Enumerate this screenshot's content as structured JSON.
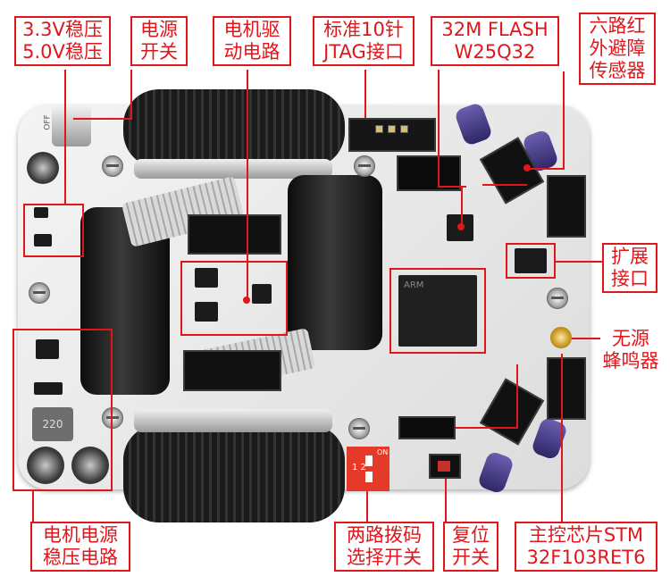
{
  "labels": {
    "regulator_3v3_5v": [
      "3.3V稳压",
      "5.0V稳压"
    ],
    "power_switch": [
      "电源",
      "开关"
    ],
    "motor_driver": [
      "电机驱",
      "动电路"
    ],
    "jtag": [
      "标准10针",
      "JTAG接口"
    ],
    "flash": [
      "32M FLASH",
      "W25Q32"
    ],
    "ir_sensors": [
      "六路红",
      "外避障",
      "传感器"
    ],
    "expansion": [
      "扩展",
      "接口"
    ],
    "buzzer": [
      "无源",
      "蜂鸣器"
    ],
    "motor_power": [
      "电机电源",
      "稳压电路"
    ],
    "dip_switch": [
      "两路拨码",
      "选择开关"
    ],
    "reset": [
      "复位",
      "开关"
    ],
    "mcu": [
      "主控芯片STM",
      "32F103RET6"
    ]
  },
  "board_text": {
    "inductor": "220",
    "dip_on": "ON",
    "dip_numbers": "1 2",
    "mcu_marking": "ARM",
    "switch_text": "OFF"
  },
  "colors": {
    "callout": "#e0161b",
    "pcb": "#e8e8e8",
    "dip_switch": "#e53a2a",
    "ir_lens": "#4b3f99"
  }
}
